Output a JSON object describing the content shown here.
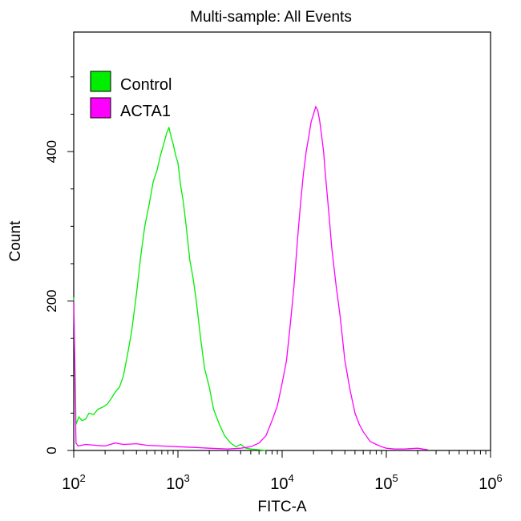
{
  "chart_data": {
    "type": "area",
    "title": "Multi-sample: All Events",
    "xlabel": "FITC-A",
    "ylabel": "Count",
    "x_scale": "log",
    "xlim": [
      100,
      1000000
    ],
    "ylim": [
      0,
      560
    ],
    "x_ticks": [
      {
        "base": "10",
        "exp": "2",
        "value": 100
      },
      {
        "base": "10",
        "exp": "3",
        "value": 1000
      },
      {
        "base": "10",
        "exp": "4",
        "value": 10000
      },
      {
        "base": "10",
        "exp": "5",
        "value": 100000
      },
      {
        "base": "10",
        "exp": "6",
        "value": 1000000
      }
    ],
    "y_ticks": [
      0,
      200,
      400
    ],
    "grid": false,
    "legend_position": "top-left",
    "series": [
      {
        "name": "Control",
        "color": "#00ee00",
        "x": [
          100,
          105,
          112,
          120,
          130,
          140,
          155,
          170,
          190,
          210,
          230,
          250,
          275,
          300,
          330,
          360,
          400,
          440,
          480,
          530,
          580,
          630,
          680,
          730,
          780,
          820,
          860,
          900,
          950,
          1000,
          1060,
          1120,
          1200,
          1300,
          1400,
          1500,
          1650,
          1800,
          2000,
          2200,
          2500,
          2800,
          3200,
          3600,
          4000,
          4500,
          5000,
          6000,
          7000
        ],
        "y": [
          205,
          35,
          45,
          40,
          42,
          50,
          48,
          55,
          58,
          62,
          70,
          78,
          85,
          100,
          130,
          160,
          210,
          260,
          300,
          330,
          360,
          375,
          395,
          410,
          425,
          432,
          420,
          410,
          395,
          385,
          355,
          335,
          300,
          255,
          230,
          200,
          150,
          110,
          85,
          55,
          35,
          20,
          10,
          5,
          8,
          3,
          2,
          1,
          0
        ]
      },
      {
        "name": "ACTA1",
        "color": "#ff00ff",
        "x": [
          100,
          105,
          110,
          130,
          160,
          200,
          250,
          300,
          400,
          500,
          700,
          1000,
          1500,
          2000,
          3000,
          4000,
          5000,
          6000,
          7000,
          8000,
          9000,
          10000,
          11000,
          12000,
          13000,
          14000,
          15000,
          16000,
          17000,
          18000,
          19000,
          20000,
          21000,
          22000,
          23000,
          24000,
          25000,
          26000,
          28000,
          30000,
          33000,
          36000,
          40000,
          45000,
          50000,
          55000,
          60000,
          70000,
          80000,
          90000,
          100000,
          120000,
          150000,
          200000,
          250000
        ],
        "y": [
          200,
          10,
          6,
          8,
          7,
          6,
          10,
          8,
          9,
          7,
          6,
          5,
          4,
          3,
          2,
          3,
          5,
          10,
          20,
          40,
          60,
          90,
          120,
          170,
          220,
          280,
          330,
          370,
          400,
          420,
          440,
          450,
          460,
          455,
          440,
          420,
          400,
          370,
          320,
          270,
          220,
          180,
          120,
          80,
          50,
          35,
          25,
          12,
          8,
          5,
          3,
          2,
          2,
          3,
          1
        ]
      }
    ]
  }
}
